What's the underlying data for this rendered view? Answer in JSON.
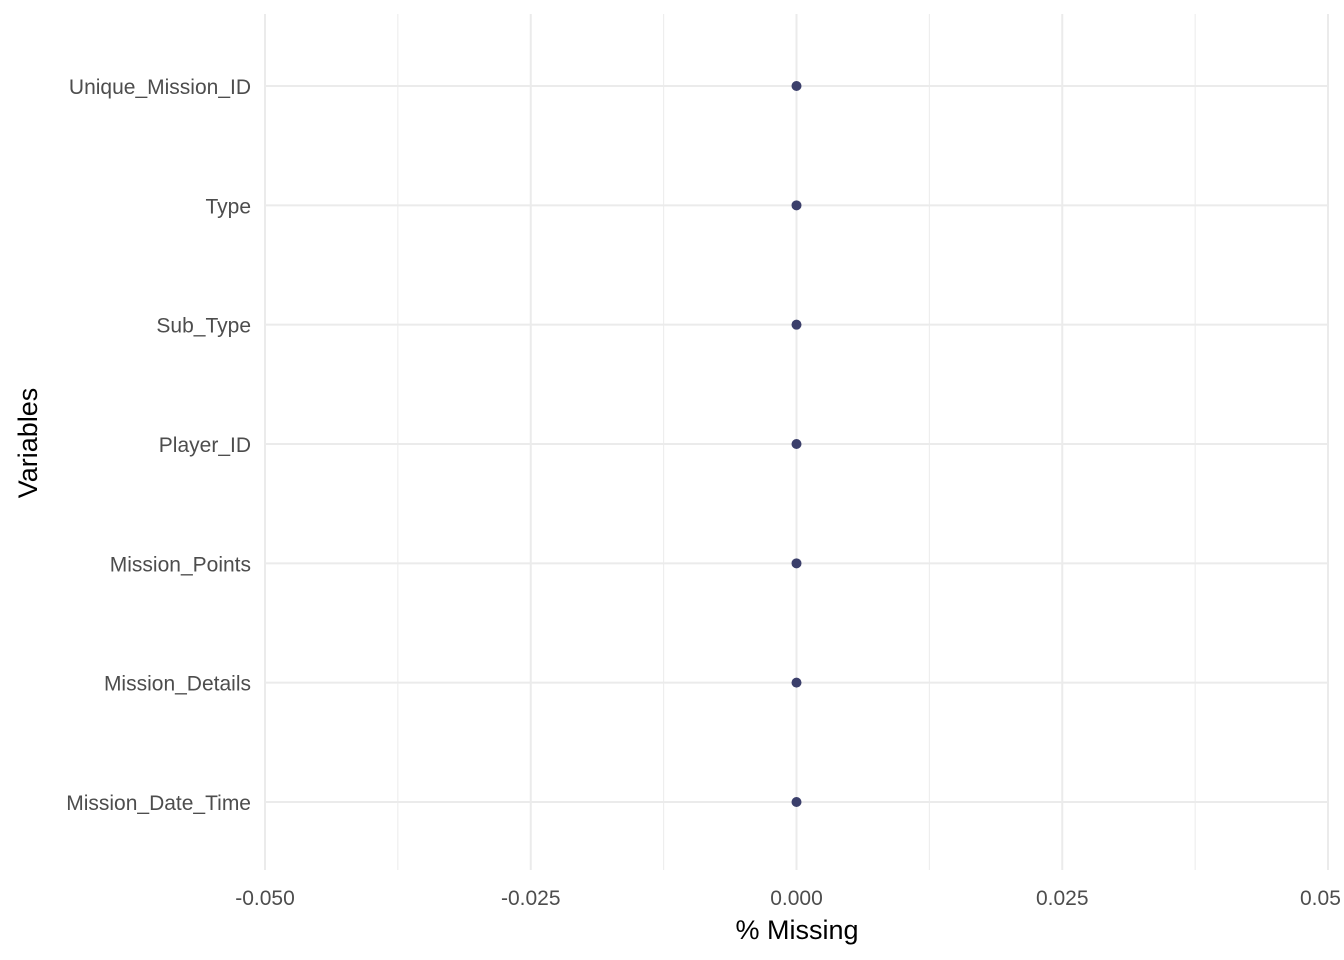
{
  "chart_data": {
    "type": "scatter",
    "title": "",
    "xlabel": "% Missing",
    "ylabel": "Variables",
    "xlim": [
      -0.05,
      0.05
    ],
    "x_ticks": [
      -0.05,
      -0.025,
      0.0,
      0.025,
      0.05
    ],
    "x_tick_labels": [
      "-0.050",
      "-0.025",
      "0.000",
      "0.025",
      "0.05"
    ],
    "grid": true,
    "point_color": "#3b3f6b",
    "categories": [
      "Unique_Mission_ID",
      "Type",
      "Sub_Type",
      "Player_ID",
      "Mission_Points",
      "Mission_Details",
      "Mission_Date_Time"
    ],
    "values": [
      0,
      0,
      0,
      0,
      0,
      0,
      0
    ]
  }
}
